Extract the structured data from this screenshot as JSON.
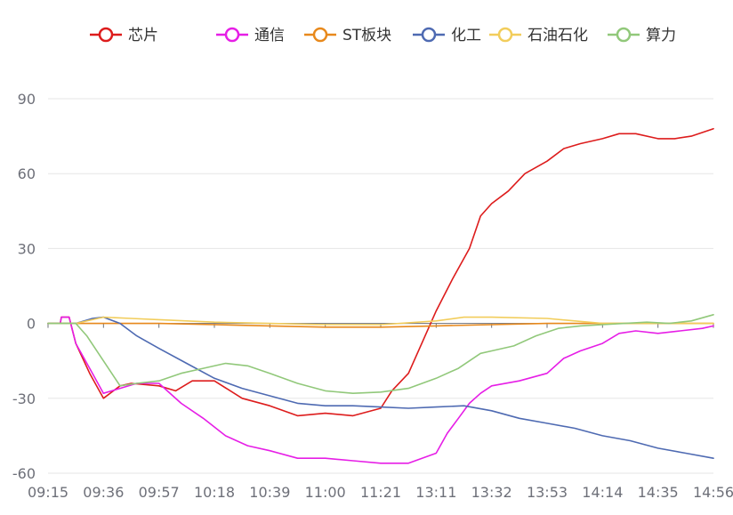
{
  "chart_data": {
    "type": "line",
    "legend_position": "top-center",
    "grid": true,
    "categories": [
      "09:15",
      "09:36",
      "09:57",
      "10:18",
      "10:39",
      "11:00",
      "11:21",
      "13:11",
      "13:32",
      "13:53",
      "14:14",
      "14:35",
      "14:56"
    ],
    "y_ticks": [
      90,
      60,
      30,
      0,
      -30,
      -60
    ],
    "ylim": [
      -60,
      90
    ],
    "series": [
      {
        "name": "芯片",
        "color": "#dd1c1c",
        "x": [
          0,
          0.22,
          0.24,
          0.38,
          0.5,
          0.75,
          1.0,
          1.3,
          1.5,
          2.0,
          2.3,
          2.6,
          3.0,
          3.5,
          4.0,
          4.5,
          5.0,
          5.5,
          6.0,
          6.2,
          6.5,
          6.8,
          7.0,
          7.3,
          7.6,
          7.8,
          8.0,
          8.3,
          8.6,
          9.0,
          9.3,
          9.6,
          10.0,
          10.3,
          10.6,
          11.0,
          11.3,
          11.6,
          12.0
        ],
        "y": [
          0,
          0,
          2.5,
          2.5,
          -8,
          -20,
          -30,
          -25,
          -24,
          -25,
          -27,
          -23,
          -23,
          -30,
          -33,
          -37,
          -36,
          -37,
          -34,
          -27,
          -20,
          -5,
          5,
          18,
          30,
          43,
          48,
          53,
          60,
          65,
          70,
          72,
          74,
          76,
          76,
          74,
          74,
          75,
          78
        ]
      },
      {
        "name": "通信",
        "color": "#e61ee6",
        "x": [
          0,
          0.22,
          0.24,
          0.38,
          0.5,
          0.75,
          1.0,
          1.3,
          1.6,
          2.0,
          2.4,
          2.8,
          3.2,
          3.6,
          4.0,
          4.5,
          5.0,
          5.5,
          6.0,
          6.5,
          7.0,
          7.2,
          7.4,
          7.6,
          7.8,
          8.0,
          8.5,
          9.0,
          9.3,
          9.6,
          10.0,
          10.3,
          10.6,
          11.0,
          11.4,
          11.8,
          12.0
        ],
        "y": [
          0,
          0,
          2.5,
          2.5,
          -8,
          -18,
          -28,
          -26,
          -24,
          -24,
          -32,
          -38,
          -45,
          -49,
          -51,
          -54,
          -54,
          -55,
          -56,
          -56,
          -52,
          -44,
          -38,
          -32,
          -28,
          -25,
          -23,
          -20,
          -14,
          -11,
          -8,
          -4,
          -3,
          -4,
          -3,
          -2,
          -1
        ]
      },
      {
        "name": "ST板块",
        "color": "#e8891c",
        "x": [
          0,
          1,
          2,
          3,
          4,
          5,
          6,
          7,
          8,
          9,
          10,
          11,
          12
        ],
        "y": [
          0,
          0,
          0,
          -0.5,
          -1,
          -1.5,
          -1.5,
          -1,
          -0.5,
          0,
          0,
          0,
          0
        ]
      },
      {
        "name": "化工",
        "color": "#4e6ab2",
        "x": [
          0,
          0.5,
          0.8,
          1.0,
          1.3,
          1.6,
          2.0,
          2.5,
          3.0,
          3.5,
          4.0,
          4.5,
          5.0,
          5.5,
          6.0,
          6.5,
          7.0,
          7.5,
          8.0,
          8.5,
          9.0,
          9.5,
          10.0,
          10.5,
          11.0,
          11.5,
          12.0
        ],
        "y": [
          0,
          0,
          2,
          2.5,
          0,
          -5,
          -10,
          -16,
          -22,
          -26,
          -29,
          -32,
          -33,
          -33,
          -33.5,
          -34,
          -33.5,
          -33,
          -35,
          -38,
          -40,
          -42,
          -45,
          -47,
          -50,
          -52,
          -54
        ]
      },
      {
        "name": "石油石化",
        "color": "#f2cd5b",
        "x": [
          0,
          0.5,
          1.0,
          1.5,
          2.0,
          2.5,
          3.0,
          4.0,
          5.0,
          6.0,
          7.0,
          7.5,
          8.0,
          9.0,
          9.5,
          10.0,
          11.0,
          12.0
        ],
        "y": [
          0,
          0,
          2.5,
          2,
          1.5,
          1,
          0.5,
          0,
          -0.5,
          -0.5,
          1,
          2.5,
          2.5,
          2,
          1,
          0,
          0,
          0
        ]
      },
      {
        "name": "算力",
        "color": "#91c87a",
        "x": [
          0,
          0.5,
          0.7,
          1.0,
          1.3,
          1.6,
          2.0,
          2.4,
          2.8,
          3.2,
          3.6,
          4.0,
          4.5,
          5.0,
          5.5,
          6.0,
          6.5,
          7.0,
          7.4,
          7.8,
          8.0,
          8.4,
          8.8,
          9.2,
          9.6,
          10.0,
          10.4,
          10.8,
          11.2,
          11.6,
          12.0
        ],
        "y": [
          0,
          0,
          -5,
          -15,
          -25,
          -24,
          -23,
          -20,
          -18,
          -16,
          -17,
          -20,
          -24,
          -27,
          -28,
          -27.5,
          -26,
          -22,
          -18,
          -12,
          -11,
          -9,
          -5,
          -2,
          -1,
          -0.5,
          0,
          0.5,
          0,
          1,
          3.5
        ]
      }
    ]
  }
}
